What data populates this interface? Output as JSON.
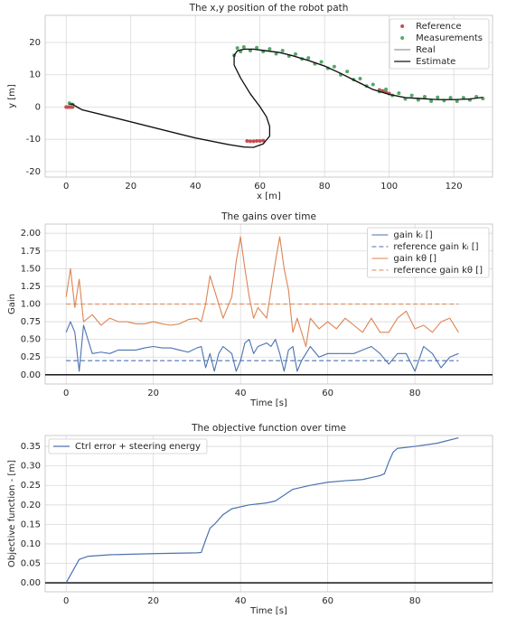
{
  "chart_data": [
    {
      "type": "scatter",
      "title": "The x,y position of the robot path",
      "xlabel": "x [m]",
      "ylabel": "y [m]",
      "xlim": [
        -6.5,
        132
      ],
      "ylim": [
        -21.7,
        28.4
      ],
      "xticks": [
        0,
        20,
        40,
        60,
        80,
        100,
        120
      ],
      "yticks": [
        -20,
        -10,
        0,
        10,
        20
      ],
      "grid": true,
      "legend": "upper right",
      "zero_line": false,
      "series": [
        {
          "name": "Reference",
          "color": "#c44e52",
          "mode": "markers",
          "x": [
            0,
            0.5,
            1,
            1.5,
            2,
            56,
            57,
            58,
            59,
            60,
            61,
            97,
            98,
            99,
            100
          ],
          "values": [
            0,
            0,
            0,
            0,
            0,
            -10.5,
            -10.6,
            -10.6,
            -10.5,
            -10.5,
            -10.4,
            5.3,
            5,
            4.6,
            4.2
          ]
        },
        {
          "name": "Measurements",
          "color": "#55a868",
          "mode": "markers",
          "x": [
            52,
            53,
            54,
            55,
            57,
            59,
            61,
            63,
            65,
            67,
            69,
            71,
            73,
            75,
            77,
            79,
            81,
            83,
            85,
            87,
            89,
            91,
            93,
            95,
            97,
            99,
            101,
            103,
            105,
            107,
            109,
            111,
            113,
            115,
            117,
            119,
            121,
            123,
            125,
            127,
            129,
            1,
            2
          ],
          "values": [
            16,
            18.3,
            17.2,
            18.6,
            17.5,
            18.4,
            17.2,
            18,
            16.5,
            17.5,
            15.8,
            16.4,
            14.9,
            15.2,
            13.4,
            14,
            12,
            12.5,
            10,
            11,
            8.5,
            8.8,
            6.5,
            7,
            4.8,
            5.5,
            3.6,
            4.3,
            2.5,
            3.6,
            2.2,
            3.2,
            1.8,
            3,
            2,
            2.9,
            1.8,
            2.9,
            2.2,
            3.2,
            2.6,
            1.2,
            0.8
          ]
        },
        {
          "name": "Real",
          "color": "#555555",
          "mode": "line",
          "width": 0.8,
          "x": [
            1,
            2,
            3,
            5,
            10,
            20,
            30,
            40,
            50,
            55,
            58,
            61,
            63,
            63,
            62,
            60,
            57,
            54,
            52,
            52,
            53,
            55,
            58,
            62,
            66,
            70,
            75,
            80,
            85,
            90,
            95,
            100,
            105,
            110,
            115,
            120,
            125,
            129
          ],
          "values": [
            1,
            1,
            0.3,
            -0.8,
            -2,
            -4.5,
            -7,
            -9.5,
            -11.5,
            -12.3,
            -12.5,
            -11.5,
            -9,
            -6,
            -3,
            0,
            4,
            9,
            13,
            16,
            17.5,
            18,
            18,
            17.5,
            17,
            16,
            14.5,
            12.8,
            10.5,
            8,
            5.5,
            4,
            3,
            2.7,
            2.3,
            2.3,
            2.5,
            3
          ]
        },
        {
          "name": "Estimate",
          "color": "#111111",
          "mode": "line",
          "width": 1.3,
          "x": [
            1,
            2,
            3,
            5,
            10,
            20,
            30,
            40,
            50,
            55,
            58,
            61,
            63,
            63,
            62,
            60,
            57,
            54,
            52,
            52,
            53,
            55,
            58,
            62,
            66,
            70,
            75,
            80,
            85,
            90,
            95,
            100,
            105,
            110,
            115,
            120,
            125,
            129
          ],
          "values": [
            0.9,
            0.9,
            0.2,
            -0.9,
            -2.1,
            -4.6,
            -7.1,
            -9.6,
            -11.6,
            -12.4,
            -12.5,
            -11.4,
            -9,
            -6,
            -3,
            0.1,
            4.1,
            9,
            13,
            16,
            17.4,
            17.9,
            17.9,
            17.4,
            16.9,
            15.9,
            14.4,
            12.7,
            10.4,
            7.9,
            5.4,
            3.9,
            2.9,
            2.6,
            2.3,
            2.3,
            2.5,
            3
          ]
        }
      ]
    },
    {
      "type": "line",
      "title": "The gains over time",
      "xlabel": "Time [s]",
      "ylabel": "Gain",
      "xlim": [
        -4.8,
        97.8
      ],
      "ylim": [
        -0.13,
        2.13
      ],
      "xticks": [
        0,
        20,
        40,
        60,
        80
      ],
      "yticks": [
        {
          "value": 0,
          "label": "0.00"
        },
        {
          "value": 0.25,
          "label": "0.25"
        },
        {
          "value": 0.5,
          "label": "0.50"
        },
        {
          "value": 0.75,
          "label": "0.75"
        },
        {
          "value": 1,
          "label": "1.00"
        },
        {
          "value": 1.25,
          "label": "1.25"
        },
        {
          "value": 1.5,
          "label": "1.50"
        },
        {
          "value": 1.75,
          "label": "1.75"
        },
        {
          "value": 2,
          "label": "2.00"
        }
      ],
      "grid": true,
      "legend": "upper right",
      "zero_line": true,
      "series": [
        {
          "name": "gain kₗ []",
          "color": "#4c72b0",
          "mode": "line",
          "width": 1.1,
          "x": [
            0,
            1,
            2,
            3,
            4,
            6,
            8,
            10,
            12,
            14,
            16,
            18,
            20,
            22,
            24,
            26,
            28,
            30,
            31,
            32,
            33,
            34,
            35,
            36,
            38,
            39,
            40,
            41,
            42,
            43,
            44,
            46,
            47,
            48,
            49,
            50,
            51,
            52,
            53,
            54,
            55,
            56,
            58,
            60,
            62,
            64,
            66,
            68,
            70,
            72,
            74,
            76,
            78,
            80,
            82,
            84,
            86,
            88,
            90
          ],
          "values": [
            0.6,
            0.75,
            0.6,
            0.05,
            0.7,
            0.3,
            0.32,
            0.3,
            0.35,
            0.35,
            0.35,
            0.38,
            0.4,
            0.38,
            0.38,
            0.35,
            0.32,
            0.38,
            0.4,
            0.1,
            0.3,
            0.05,
            0.3,
            0.4,
            0.3,
            0.05,
            0.2,
            0.45,
            0.5,
            0.3,
            0.4,
            0.45,
            0.4,
            0.5,
            0.3,
            0.05,
            0.35,
            0.4,
            0.05,
            0.2,
            0.3,
            0.4,
            0.25,
            0.3,
            0.3,
            0.3,
            0.3,
            0.35,
            0.4,
            0.3,
            0.15,
            0.3,
            0.3,
            0.05,
            0.4,
            0.3,
            0.1,
            0.25,
            0.3
          ]
        },
        {
          "name": "reference gain kₗ []",
          "color": "#4c72b0",
          "mode": "line",
          "width": 1.1,
          "dash": true,
          "x": [
            0,
            90
          ],
          "values": [
            0.2,
            0.2
          ]
        },
        {
          "name": "gain kθ []",
          "color": "#dd8452",
          "mode": "line",
          "width": 1.1,
          "x": [
            0,
            1,
            2,
            3,
            4,
            6,
            8,
            10,
            12,
            14,
            16,
            18,
            20,
            22,
            24,
            26,
            28,
            30,
            31,
            32,
            33,
            34,
            35,
            36,
            38,
            39,
            40,
            41,
            42,
            43,
            44,
            46,
            47,
            48,
            49,
            50,
            51,
            52,
            53,
            54,
            55,
            56,
            58,
            60,
            62,
            64,
            66,
            68,
            70,
            72,
            74,
            76,
            78,
            80,
            82,
            84,
            86,
            88,
            90
          ],
          "values": [
            1.1,
            1.5,
            0.95,
            1.35,
            0.75,
            0.85,
            0.7,
            0.8,
            0.75,
            0.75,
            0.72,
            0.72,
            0.75,
            0.72,
            0.7,
            0.72,
            0.78,
            0.8,
            0.75,
            1.0,
            1.4,
            1.2,
            1.0,
            0.8,
            1.1,
            1.6,
            1.95,
            1.5,
            1.1,
            0.8,
            0.95,
            0.8,
            1.2,
            1.6,
            1.95,
            1.5,
            1.2,
            0.6,
            0.8,
            0.6,
            0.4,
            0.8,
            0.65,
            0.75,
            0.65,
            0.8,
            0.7,
            0.6,
            0.8,
            0.6,
            0.6,
            0.8,
            0.9,
            0.65,
            0.7,
            0.6,
            0.75,
            0.8,
            0.6
          ]
        },
        {
          "name": "reference gain kθ []",
          "color": "#dd8452",
          "mode": "line",
          "width": 1.1,
          "dash": true,
          "x": [
            0,
            90
          ],
          "values": [
            1.0,
            1.0
          ]
        }
      ]
    },
    {
      "type": "line",
      "title": "The objective function over time",
      "xlabel": "Time [s]",
      "ylabel": "Objective function - [m]",
      "xlim": [
        -4.8,
        97.8
      ],
      "ylim": [
        -0.023,
        0.378
      ],
      "xticks": [
        0,
        20,
        40,
        60,
        80
      ],
      "yticks": [
        {
          "value": 0,
          "label": "0.00"
        },
        {
          "value": 0.05,
          "label": "0.05"
        },
        {
          "value": 0.1,
          "label": "0.10"
        },
        {
          "value": 0.15,
          "label": "0.15"
        },
        {
          "value": 0.2,
          "label": "0.20"
        },
        {
          "value": 0.25,
          "label": "0.25"
        },
        {
          "value": 0.3,
          "label": "0.30"
        },
        {
          "value": 0.35,
          "label": "0.35"
        }
      ],
      "grid": true,
      "legend": "upper left",
      "zero_line": true,
      "series": [
        {
          "name": "Ctrl error + steering energy",
          "color": "#4c72b0",
          "mode": "line",
          "width": 1.2,
          "x": [
            0,
            2,
            3,
            5,
            10,
            20,
            30,
            31,
            32,
            33,
            34,
            36,
            38,
            42,
            46,
            48,
            50,
            52,
            56,
            60,
            64,
            68,
            70,
            72,
            73,
            74,
            75,
            76,
            80,
            85,
            90
          ],
          "values": [
            0,
            0.04,
            0.06,
            0.068,
            0.072,
            0.075,
            0.077,
            0.078,
            0.11,
            0.14,
            0.15,
            0.175,
            0.19,
            0.2,
            0.205,
            0.21,
            0.225,
            0.24,
            0.25,
            0.258,
            0.262,
            0.265,
            0.27,
            0.275,
            0.28,
            0.31,
            0.335,
            0.345,
            0.35,
            0.358,
            0.372
          ]
        }
      ]
    }
  ]
}
